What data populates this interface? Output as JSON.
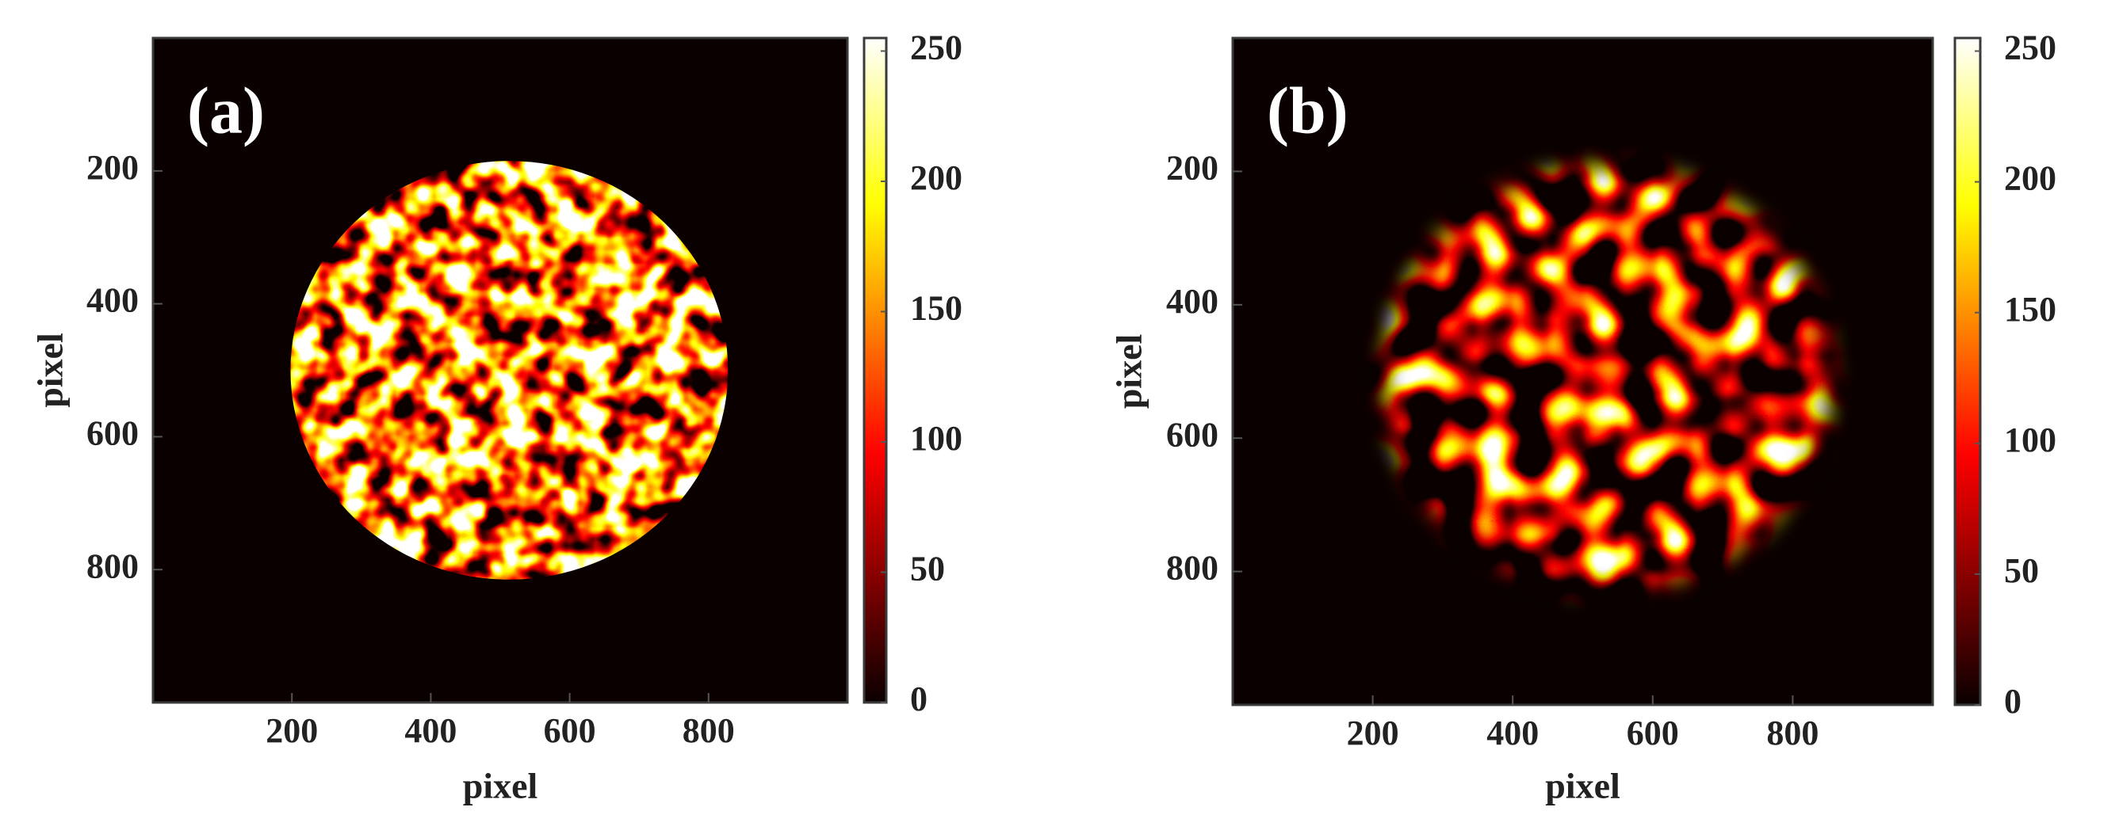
{
  "chart_data": [
    {
      "type": "heatmap",
      "label": "(a)",
      "xlabel": "pixel",
      "ylabel": "pixel",
      "xlim": [
        0,
        1000
      ],
      "ylim": [
        0,
        1000
      ],
      "y_reversed": true,
      "xticks": [
        200,
        400,
        600,
        800
      ],
      "yticks": [
        200,
        400,
        600,
        800
      ],
      "colormap": "hot",
      "clim": [
        0,
        255
      ],
      "cticks": [
        0,
        50,
        100,
        150,
        200,
        250
      ],
      "spot": {
        "cx": 513,
        "cy": 500,
        "r": 315
      },
      "smooth": false
    },
    {
      "type": "heatmap",
      "label": "(b)",
      "xlabel": "pixel",
      "ylabel": "pixel",
      "xlim": [
        0,
        1000
      ],
      "ylim": [
        0,
        1000
      ],
      "y_reversed": true,
      "xticks": [
        200,
        400,
        600,
        800
      ],
      "yticks": [
        200,
        400,
        600,
        800
      ],
      "colormap": "hot",
      "clim": [
        0,
        255
      ],
      "cticks": [
        0,
        50,
        100,
        150,
        200,
        250
      ],
      "spot": {
        "cx": 535,
        "cy": 510,
        "r": 330
      },
      "smooth": true
    }
  ]
}
